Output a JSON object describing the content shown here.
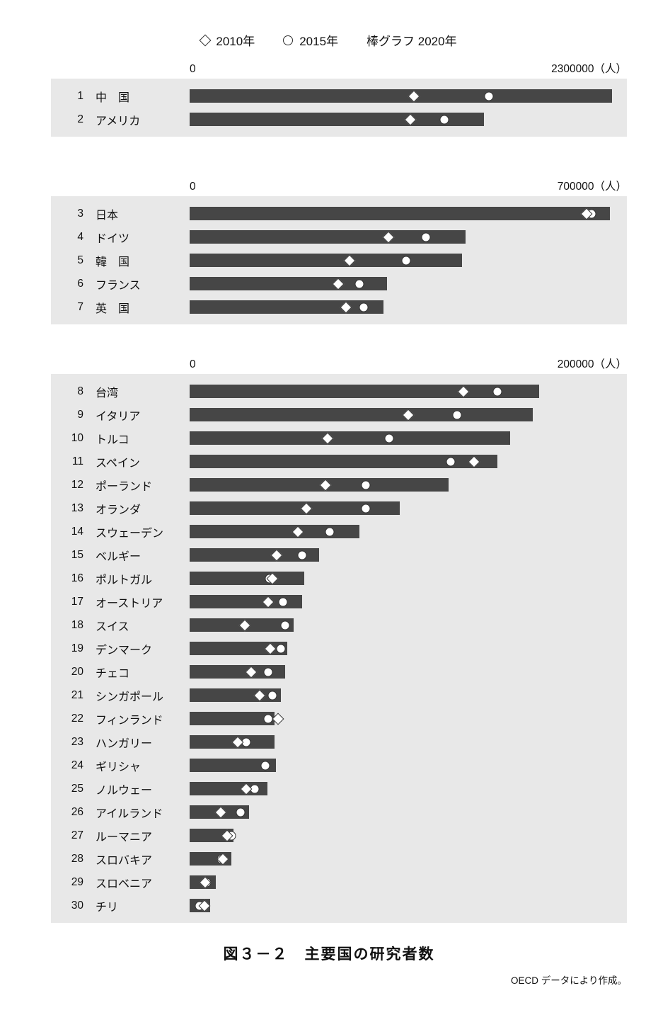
{
  "legend": {
    "diamond_label": "2010年",
    "circle_label": "2015年",
    "bar_label": "棒グラフ 2020年"
  },
  "source": "OECD データにより作成。",
  "colors": {
    "bar": "#464646",
    "panel_bg": "#e8e8e8",
    "marker_fill": "#ffffff",
    "marker_stroke": "#333333"
  },
  "chart_data": {
    "type": "bar",
    "orientation": "horizontal",
    "title": "図３－２　主要国の研究者数",
    "unit": "人",
    "legend_position": "top",
    "series_labels": {
      "diamond": "2010年",
      "circle": "2015年",
      "bar": "2020年"
    },
    "panels": [
      {
        "axis_min_label": "0",
        "axis_max_label": "2300000（人）",
        "xlim": [
          0,
          2300000
        ],
        "rows": [
          {
            "rank": "1",
            "country": "中　国",
            "y2020": 2290000,
            "y2010": 1215000,
            "y2015": 1620000
          },
          {
            "rank": "2",
            "country": "アメリカ",
            "y2020": 1595000,
            "y2010": 1195000,
            "y2015": 1380000
          }
        ]
      },
      {
        "axis_min_label": "0",
        "axis_max_label": "700000（人）",
        "xlim": [
          0,
          700000
        ],
        "rows": [
          {
            "rank": "3",
            "country": "日本",
            "y2020": 693000,
            "y2010": 655000,
            "y2015": 663000
          },
          {
            "rank": "4",
            "country": "ドイツ",
            "y2020": 455000,
            "y2010": 328000,
            "y2015": 390000
          },
          {
            "rank": "5",
            "country": "韓　国",
            "y2020": 449000,
            "y2010": 264000,
            "y2015": 357000
          },
          {
            "rank": "6",
            "country": "フランス",
            "y2020": 326000,
            "y2010": 245000,
            "y2015": 280000
          },
          {
            "rank": "7",
            "country": "英　国",
            "y2020": 320000,
            "y2010": 258000,
            "y2015": 287000
          }
        ]
      },
      {
        "axis_min_label": "0",
        "axis_max_label": "200000（人）",
        "xlim": [
          0,
          200000
        ],
        "rows": [
          {
            "rank": "8",
            "country": "台湾",
            "y2020": 164500,
            "y2010": 129000,
            "y2015": 145000
          },
          {
            "rank": "9",
            "country": "イタリア",
            "y2020": 161500,
            "y2010": 103000,
            "y2015": 126000
          },
          {
            "rank": "10",
            "country": "トルコ",
            "y2020": 151000,
            "y2010": 65000,
            "y2015": 94000
          },
          {
            "rank": "11",
            "country": "スペイン",
            "y2020": 145000,
            "y2010": 134000,
            "y2015": 123000
          },
          {
            "rank": "12",
            "country": "ポーランド",
            "y2020": 122000,
            "y2010": 64000,
            "y2015": 83000
          },
          {
            "rank": "13",
            "country": "オランダ",
            "y2020": 99000,
            "y2010": 55000,
            "y2015": 83000
          },
          {
            "rank": "14",
            "country": "スウェーデン",
            "y2020": 80000,
            "y2010": 51000,
            "y2015": 66000
          },
          {
            "rank": "15",
            "country": "ベルギー",
            "y2020": 61000,
            "y2010": 41000,
            "y2015": 53000
          },
          {
            "rank": "16",
            "country": "ポルトガル",
            "y2020": 54000,
            "y2010": 39000,
            "y2015": 37500
          },
          {
            "rank": "17",
            "country": "オーストリア",
            "y2020": 53000,
            "y2010": 37000,
            "y2015": 44000
          },
          {
            "rank": "18",
            "country": "スイス",
            "y2020": 49000,
            "y2010": 26000,
            "y2015": 45000
          },
          {
            "rank": "19",
            "country": "デンマーク",
            "y2020": 46000,
            "y2010": 38000,
            "y2015": 43000
          },
          {
            "rank": "20",
            "country": "チェコ",
            "y2020": 45000,
            "y2010": 29000,
            "y2015": 37000
          },
          {
            "rank": "21",
            "country": "シンガポール",
            "y2020": 43000,
            "y2010": 33000,
            "y2015": 39000
          },
          {
            "rank": "22",
            "country": "フィンランド",
            "y2020": 40000,
            "y2010": 41500,
            "y2015": 37000
          },
          {
            "rank": "23",
            "country": "ハンガリー",
            "y2020": 40000,
            "y2010": 22500,
            "y2015": 26500
          },
          {
            "rank": "24",
            "country": "ギリシャ",
            "y2020": 40500,
            "y2010": null,
            "y2015": 35500
          },
          {
            "rank": "25",
            "country": "ノルウェー",
            "y2020": 36500,
            "y2010": 26500,
            "y2015": 30500
          },
          {
            "rank": "26",
            "country": "アイルランド",
            "y2020": 28000,
            "y2010": 14500,
            "y2015": 24000
          },
          {
            "rank": "27",
            "country": "ルーマニア",
            "y2020": 20500,
            "y2010": 17500,
            "y2015": 19800
          },
          {
            "rank": "28",
            "country": "スロバキア",
            "y2020": 19500,
            "y2010": 15700,
            "y2015": 15000
          },
          {
            "rank": "29",
            "country": "スロベニア",
            "y2020": 12300,
            "y2010": 7300,
            "y2015": 7900
          },
          {
            "rank": "30",
            "country": "チリ",
            "y2020": 9700,
            "y2010": 7000,
            "y2015": 4500
          }
        ]
      }
    ]
  }
}
